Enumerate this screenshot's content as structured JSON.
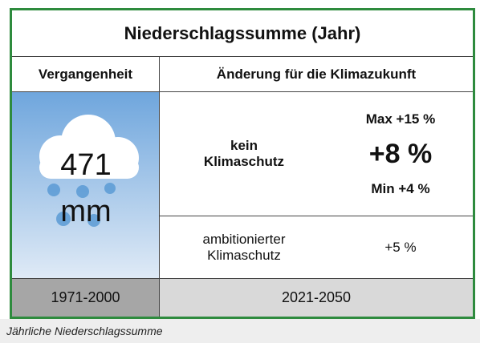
{
  "title": "Niederschlagssumme (Jahr)",
  "headers": {
    "past": "Vergangenheit",
    "future": "Änderung für die Klimazukunft"
  },
  "past": {
    "value": "471",
    "unit": "mm",
    "period": "1971-2000"
  },
  "scenarios": [
    {
      "label": "kein Klimaschutz",
      "max": "Max +15 %",
      "mean": "+8 %",
      "min": "Min +4 %"
    },
    {
      "label": "ambitionierter Klimaschutz",
      "mean": "+5 %"
    }
  ],
  "future_period": "2021-2050",
  "caption": "Jährliche Niederschlagssumme"
}
